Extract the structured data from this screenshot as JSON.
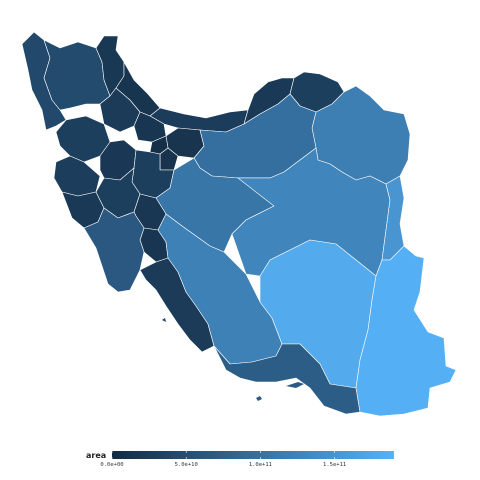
{
  "legend": {
    "title": "area",
    "min": 0,
    "max": 190000000000,
    "ticks": [
      {
        "value": 0,
        "label": "0.0e+00"
      },
      {
        "value": 50000000000,
        "label": "5.0e+10"
      },
      {
        "value": 100000000000,
        "label": "1.0e+11"
      },
      {
        "value": 150000000000,
        "label": "1.5e+11"
      }
    ],
    "color_low": "#132b43",
    "color_high": "#56b1f7"
  },
  "regions": [
    {
      "id": "west-azarbaijan",
      "area": 43000000000
    },
    {
      "id": "east-azarbaijan",
      "area": 45000000000
    },
    {
      "id": "ardabil",
      "area": 18000000000
    },
    {
      "id": "zanjan",
      "area": 22000000000
    },
    {
      "id": "gilan",
      "area": 14000000000
    },
    {
      "id": "mazandaran",
      "area": 24000000000
    },
    {
      "id": "golestan",
      "area": 20000000000
    },
    {
      "id": "north-khorasan",
      "area": 28000000000
    },
    {
      "id": "razavi-khorasan",
      "area": 118000000000
    },
    {
      "id": "kordestan",
      "area": 29000000000
    },
    {
      "id": "qazvin",
      "area": 15000000000
    },
    {
      "id": "tehran",
      "area": 13000000000
    },
    {
      "id": "alborz",
      "area": 5000000000
    },
    {
      "id": "qom",
      "area": 11000000000
    },
    {
      "id": "semnan",
      "area": 97000000000
    },
    {
      "id": "kermanshah",
      "area": 25000000000
    },
    {
      "id": "hamadan",
      "area": 19000000000
    },
    {
      "id": "markazi",
      "area": 29000000000
    },
    {
      "id": "isfahan",
      "area": 107000000000
    },
    {
      "id": "ilam",
      "area": 20000000000
    },
    {
      "id": "lorestan",
      "area": 28000000000
    },
    {
      "id": "chaharmahal",
      "area": 16000000000
    },
    {
      "id": "kohgiluyeh",
      "area": 15000000000
    },
    {
      "id": "khuzestan",
      "area": 64000000000
    },
    {
      "id": "bushehr",
      "area": 23000000000
    },
    {
      "id": "fars",
      "area": 122000000000
    },
    {
      "id": "yazd",
      "area": 129000000000
    },
    {
      "id": "south-khorasan",
      "area": 151000000000
    },
    {
      "id": "kerman",
      "area": 181000000000
    },
    {
      "id": "hormozgan",
      "area": 71000000000
    },
    {
      "id": "sistan-baluchestan",
      "area": 187000000000
    }
  ]
}
